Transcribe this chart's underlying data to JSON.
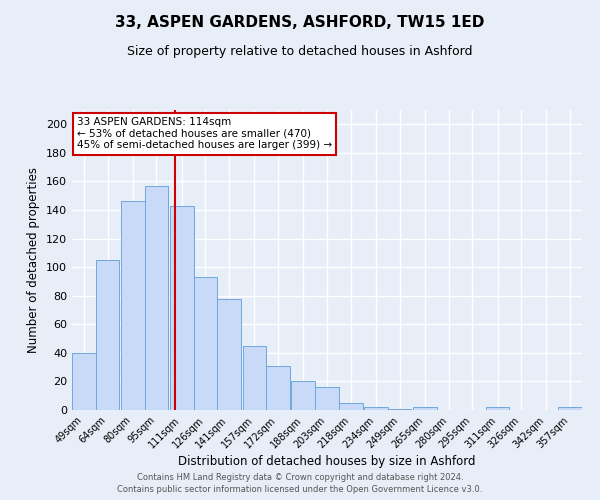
{
  "title": "33, ASPEN GARDENS, ASHFORD, TW15 1ED",
  "subtitle": "Size of property relative to detached houses in Ashford",
  "xlabel": "Distribution of detached houses by size in Ashford",
  "ylabel": "Number of detached properties",
  "bin_labels": [
    "49sqm",
    "64sqm",
    "80sqm",
    "95sqm",
    "111sqm",
    "126sqm",
    "141sqm",
    "157sqm",
    "172sqm",
    "188sqm",
    "203sqm",
    "218sqm",
    "234sqm",
    "249sqm",
    "265sqm",
    "280sqm",
    "295sqm",
    "311sqm",
    "326sqm",
    "342sqm",
    "357sqm"
  ],
  "bar_values": [
    40,
    105,
    146,
    157,
    143,
    93,
    78,
    45,
    31,
    20,
    16,
    5,
    2,
    1,
    2,
    0,
    0,
    2,
    0,
    0,
    2
  ],
  "bar_color": "#c9daf8",
  "bar_edge_color": "#6fa8dc",
  "ylim": [
    0,
    210
  ],
  "yticks": [
    0,
    20,
    40,
    60,
    80,
    100,
    120,
    140,
    160,
    180,
    200
  ],
  "property_size": 114,
  "vline_color": "#cc0000",
  "annotation_title": "33 ASPEN GARDENS: 114sqm",
  "annotation_line1": "← 53% of detached houses are smaller (470)",
  "annotation_line2": "45% of semi-detached houses are larger (399) →",
  "annotation_box_color": "#ffffff",
  "annotation_box_edge_color": "#cc0000",
  "footer1": "Contains HM Land Registry data © Crown copyright and database right 2024.",
  "footer2": "Contains public sector information licensed under the Open Government Licence v3.0.",
  "background_color": "#e8eef8",
  "plot_bg_color": "#e8eef8",
  "grid_color": "#ffffff",
  "title_fontsize": 11,
  "subtitle_fontsize": 9,
  "bin_width": 15
}
